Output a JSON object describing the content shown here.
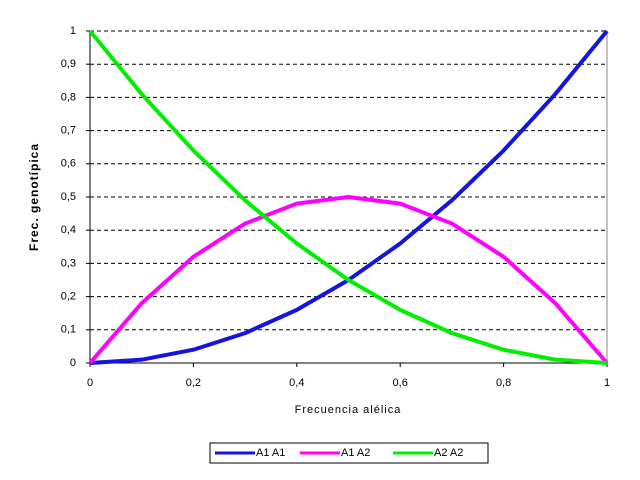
{
  "chart_data": {
    "type": "line",
    "x_label": "Frecuencia alélica",
    "y_label": "Frec. genotípica",
    "x": [
      0,
      0.1,
      0.2,
      0.3,
      0.4,
      0.5,
      0.6,
      0.7,
      0.8,
      0.9,
      1
    ],
    "series": [
      {
        "name": "A1 A1",
        "color": "#1414e0",
        "values": [
          0,
          0.01,
          0.04,
          0.09,
          0.16,
          0.25,
          0.36,
          0.49,
          0.64,
          0.81,
          1
        ]
      },
      {
        "name": "A1 A2",
        "color": "#ff00ff",
        "values": [
          0,
          0.18,
          0.32,
          0.42,
          0.48,
          0.5,
          0.48,
          0.42,
          0.32,
          0.18,
          0
        ]
      },
      {
        "name": "A2 A2",
        "color": "#00ee00",
        "values": [
          1,
          0.81,
          0.64,
          0.49,
          0.36,
          0.25,
          0.16,
          0.09,
          0.04,
          0.01,
          0
        ]
      }
    ],
    "xlim": [
      0,
      1
    ],
    "ylim": [
      0,
      1
    ],
    "xticks": [
      0,
      {
        "value": 0.2,
        "label": "0,2"
      },
      {
        "value": 0.4,
        "label": "0,4"
      },
      {
        "value": 0.6,
        "label": "0,6"
      },
      {
        "value": 0.8,
        "label": "0,8"
      },
      1
    ],
    "yticks": [
      0,
      {
        "value": 0.1,
        "label": "0,1"
      },
      {
        "value": 0.2,
        "label": "0,2"
      },
      {
        "value": 0.3,
        "label": "0,3"
      },
      {
        "value": 0.4,
        "label": "0,4"
      },
      {
        "value": 0.5,
        "label": "0,5"
      },
      {
        "value": 0.6,
        "label": "0,6"
      },
      {
        "value": 0.7,
        "label": "0,7"
      },
      {
        "value": 0.8,
        "label": "0,8"
      },
      {
        "value": 0.9,
        "label": "0,9"
      },
      1
    ],
    "grid": true,
    "legend": "bottom"
  }
}
